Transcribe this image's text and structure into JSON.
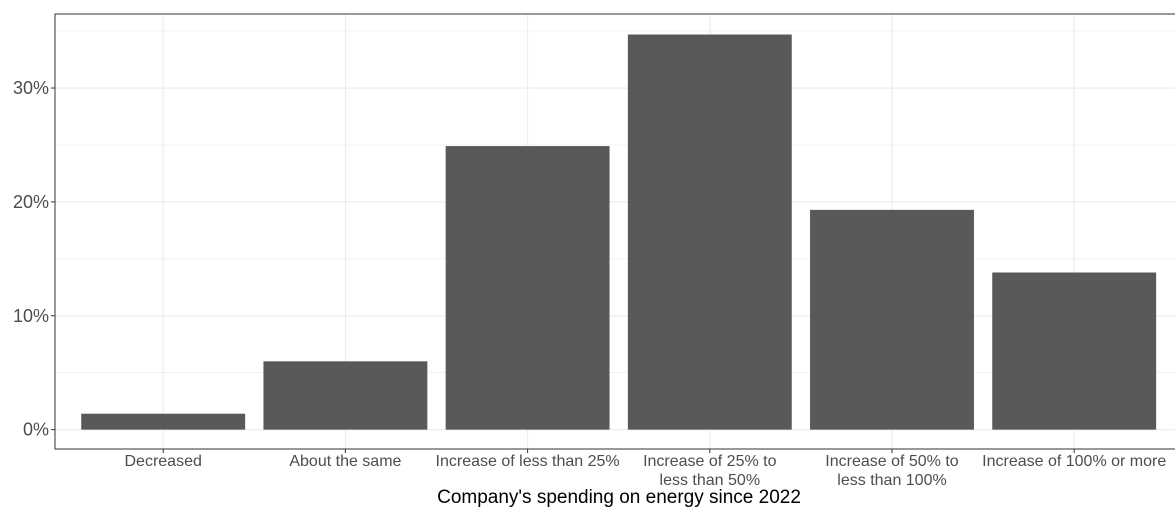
{
  "chart_data": {
    "type": "bar",
    "categories": [
      "Decreased",
      "About the same",
      "Increase of less than 25%",
      "Increase of 25% to less than 50%",
      "Increase of 50% to less than 100%",
      "Increase of 100% or more"
    ],
    "category_lines": [
      [
        "Decreased"
      ],
      [
        "About the same"
      ],
      [
        "Increase of less than 25%"
      ],
      [
        "Increase of 25% to",
        "less than 50%"
      ],
      [
        "Increase of 50% to",
        "less than 100%"
      ],
      [
        "Increase of 100% or more"
      ]
    ],
    "values": [
      1.4,
      6.0,
      24.9,
      34.7,
      19.3,
      13.8
    ],
    "xlabel": "Company's spending on energy since 2022",
    "ylabel": "",
    "yticks": [
      0,
      10,
      20,
      30
    ],
    "ytick_labels": [
      "0%",
      "10%",
      "20%",
      "30%"
    ],
    "ylim": [
      -1.7,
      36.5
    ],
    "grid": true,
    "legend": "none",
    "colors": {
      "bar": "#595959",
      "grid": "#ebebeb",
      "panel_border": "#333333",
      "text": "#4d4d4d"
    }
  }
}
